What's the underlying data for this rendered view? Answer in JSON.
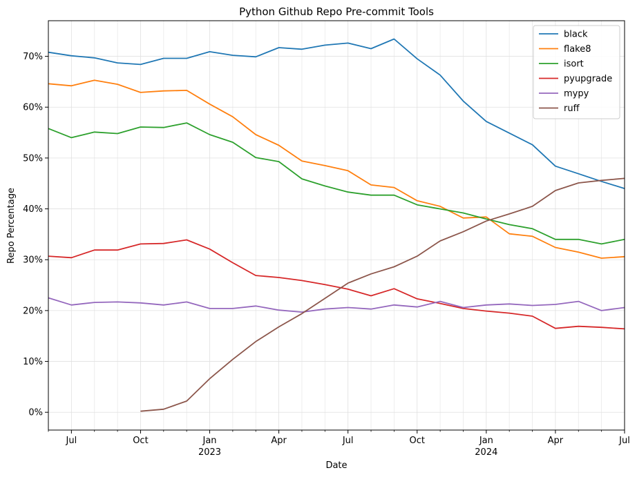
{
  "chart_data": {
    "type": "line",
    "title": "Python Github Repo Pre-commit Tools",
    "xlabel": "Date",
    "ylabel": "Repo Percentage",
    "xlim": [
      "2022-06",
      "2024-07"
    ],
    "ylim": [
      -3.5,
      77
    ],
    "grid": true,
    "legend_position": "top-right",
    "y_ticks": [
      0,
      10,
      20,
      30,
      40,
      50,
      60,
      70
    ],
    "y_tick_labels": [
      "0%",
      "10%",
      "20%",
      "30%",
      "40%",
      "50%",
      "60%",
      "70%"
    ],
    "x_ticks": [
      {
        "date": "2022-07",
        "label": "Jul",
        "sublabel": ""
      },
      {
        "date": "2022-10",
        "label": "Oct",
        "sublabel": ""
      },
      {
        "date": "2023-01",
        "label": "Jan",
        "sublabel": "2023"
      },
      {
        "date": "2023-04",
        "label": "Apr",
        "sublabel": ""
      },
      {
        "date": "2023-07",
        "label": "Jul",
        "sublabel": ""
      },
      {
        "date": "2023-10",
        "label": "Oct",
        "sublabel": ""
      },
      {
        "date": "2024-01",
        "label": "Jan",
        "sublabel": "2024"
      },
      {
        "date": "2024-04",
        "label": "Apr",
        "sublabel": ""
      },
      {
        "date": "2024-07",
        "label": "Jul",
        "sublabel": ""
      }
    ],
    "x": [
      "2022-06",
      "2022-07",
      "2022-08",
      "2022-09",
      "2022-10",
      "2022-11",
      "2022-12",
      "2023-01",
      "2023-02",
      "2023-03",
      "2023-04",
      "2023-05",
      "2023-06",
      "2023-07",
      "2023-08",
      "2023-09",
      "2023-10",
      "2023-11",
      "2023-12",
      "2024-01",
      "2024-02",
      "2024-03",
      "2024-04",
      "2024-05",
      "2024-06",
      "2024-07"
    ],
    "series": [
      {
        "name": "black",
        "color": "#1f77b4",
        "values": [
          70.8,
          70.1,
          69.7,
          68.7,
          68.4,
          69.6,
          69.6,
          70.9,
          70.2,
          69.9,
          71.7,
          71.4,
          72.2,
          72.6,
          71.5,
          73.4,
          69.5,
          66.3,
          61.2,
          57.2,
          54.9,
          52.6,
          48.4,
          46.9,
          45.4,
          44.0
        ]
      },
      {
        "name": "flake8",
        "color": "#ff7f0e",
        "values": [
          64.6,
          64.2,
          65.3,
          64.5,
          62.9,
          63.2,
          63.3,
          60.6,
          58.1,
          54.6,
          52.5,
          49.4,
          48.5,
          47.5,
          44.7,
          44.2,
          41.6,
          40.5,
          38.2,
          38.4,
          35.1,
          34.6,
          32.4,
          31.5,
          30.3,
          30.6
        ]
      },
      {
        "name": "isort",
        "color": "#2ca02c",
        "values": [
          55.8,
          54.0,
          55.1,
          54.8,
          56.1,
          56.0,
          56.9,
          54.6,
          53.1,
          50.1,
          49.3,
          45.9,
          44.5,
          43.3,
          42.7,
          42.7,
          40.8,
          40.0,
          39.2,
          38.0,
          36.9,
          36.1,
          34.0,
          34.0,
          33.1,
          34.0
        ]
      },
      {
        "name": "pyupgrade",
        "color": "#d62728",
        "values": [
          30.7,
          30.4,
          31.9,
          31.9,
          33.1,
          33.2,
          33.9,
          32.1,
          29.4,
          26.9,
          26.5,
          25.9,
          25.1,
          24.2,
          22.9,
          24.3,
          22.3,
          21.4,
          20.4,
          19.9,
          19.5,
          18.9,
          16.5,
          16.9,
          16.7,
          16.4
        ]
      },
      {
        "name": "mypy",
        "color": "#9467bd",
        "values": [
          22.5,
          21.1,
          21.6,
          21.7,
          21.5,
          21.1,
          21.7,
          20.4,
          20.4,
          20.9,
          20.1,
          19.7,
          20.3,
          20.6,
          20.3,
          21.1,
          20.7,
          21.8,
          20.6,
          21.1,
          21.3,
          21.0,
          21.2,
          21.8,
          20.0,
          20.6
        ]
      },
      {
        "name": "ruff",
        "color": "#8c564b",
        "values": [
          null,
          null,
          null,
          null,
          0.2,
          0.6,
          2.2,
          6.6,
          10.4,
          13.9,
          16.8,
          19.4,
          22.4,
          25.4,
          27.2,
          28.6,
          30.7,
          33.7,
          35.5,
          37.6,
          39.0,
          40.5,
          43.6,
          45.1,
          45.6,
          46.0
        ]
      }
    ]
  }
}
